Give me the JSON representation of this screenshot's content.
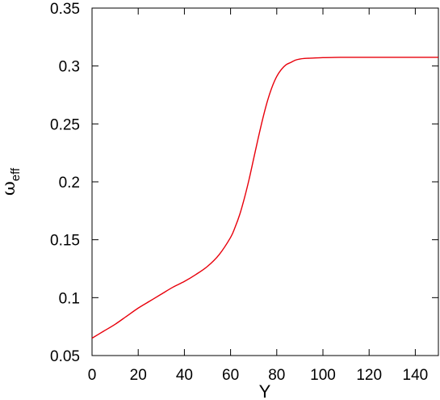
{
  "chart_data": {
    "type": "line",
    "xlabel": "Y",
    "ylabel": {
      "main": "ω",
      "sub": "eff"
    },
    "xlim": [
      0,
      150
    ],
    "ylim": [
      0.05,
      0.35
    ],
    "xticks": [
      0,
      20,
      40,
      60,
      80,
      100,
      120,
      140
    ],
    "yticks": [
      0.05,
      0.1,
      0.15,
      0.2,
      0.25,
      0.3,
      0.35
    ],
    "xtick_labels": [
      "0",
      "20",
      "40",
      "60",
      "80",
      "100",
      "120",
      "140"
    ],
    "ytick_labels": [
      "0.05",
      "0.1",
      "0.15",
      "0.2",
      "0.25",
      "0.3",
      "0.35"
    ],
    "grid": false,
    "legend": "none",
    "series": [
      {
        "color": "#e8000b",
        "x": [
          0,
          5,
          10,
          15,
          20,
          25,
          30,
          35,
          40,
          45,
          50,
          55,
          60,
          62,
          64,
          66,
          68,
          70,
          72,
          74,
          76,
          78,
          80,
          82,
          84,
          86,
          88,
          90,
          92,
          95,
          100,
          105,
          110,
          115,
          120,
          130,
          140,
          150
        ],
        "y": [
          0.065,
          0.071,
          0.077,
          0.084,
          0.091,
          0.097,
          0.103,
          0.109,
          0.114,
          0.12,
          0.127,
          0.137,
          0.152,
          0.161,
          0.172,
          0.186,
          0.202,
          0.22,
          0.238,
          0.255,
          0.27,
          0.282,
          0.291,
          0.297,
          0.301,
          0.303,
          0.305,
          0.306,
          0.3065,
          0.3068,
          0.3072,
          0.3074,
          0.3075,
          0.3075,
          0.3075,
          0.3075,
          0.3075,
          0.3075
        ]
      }
    ]
  }
}
